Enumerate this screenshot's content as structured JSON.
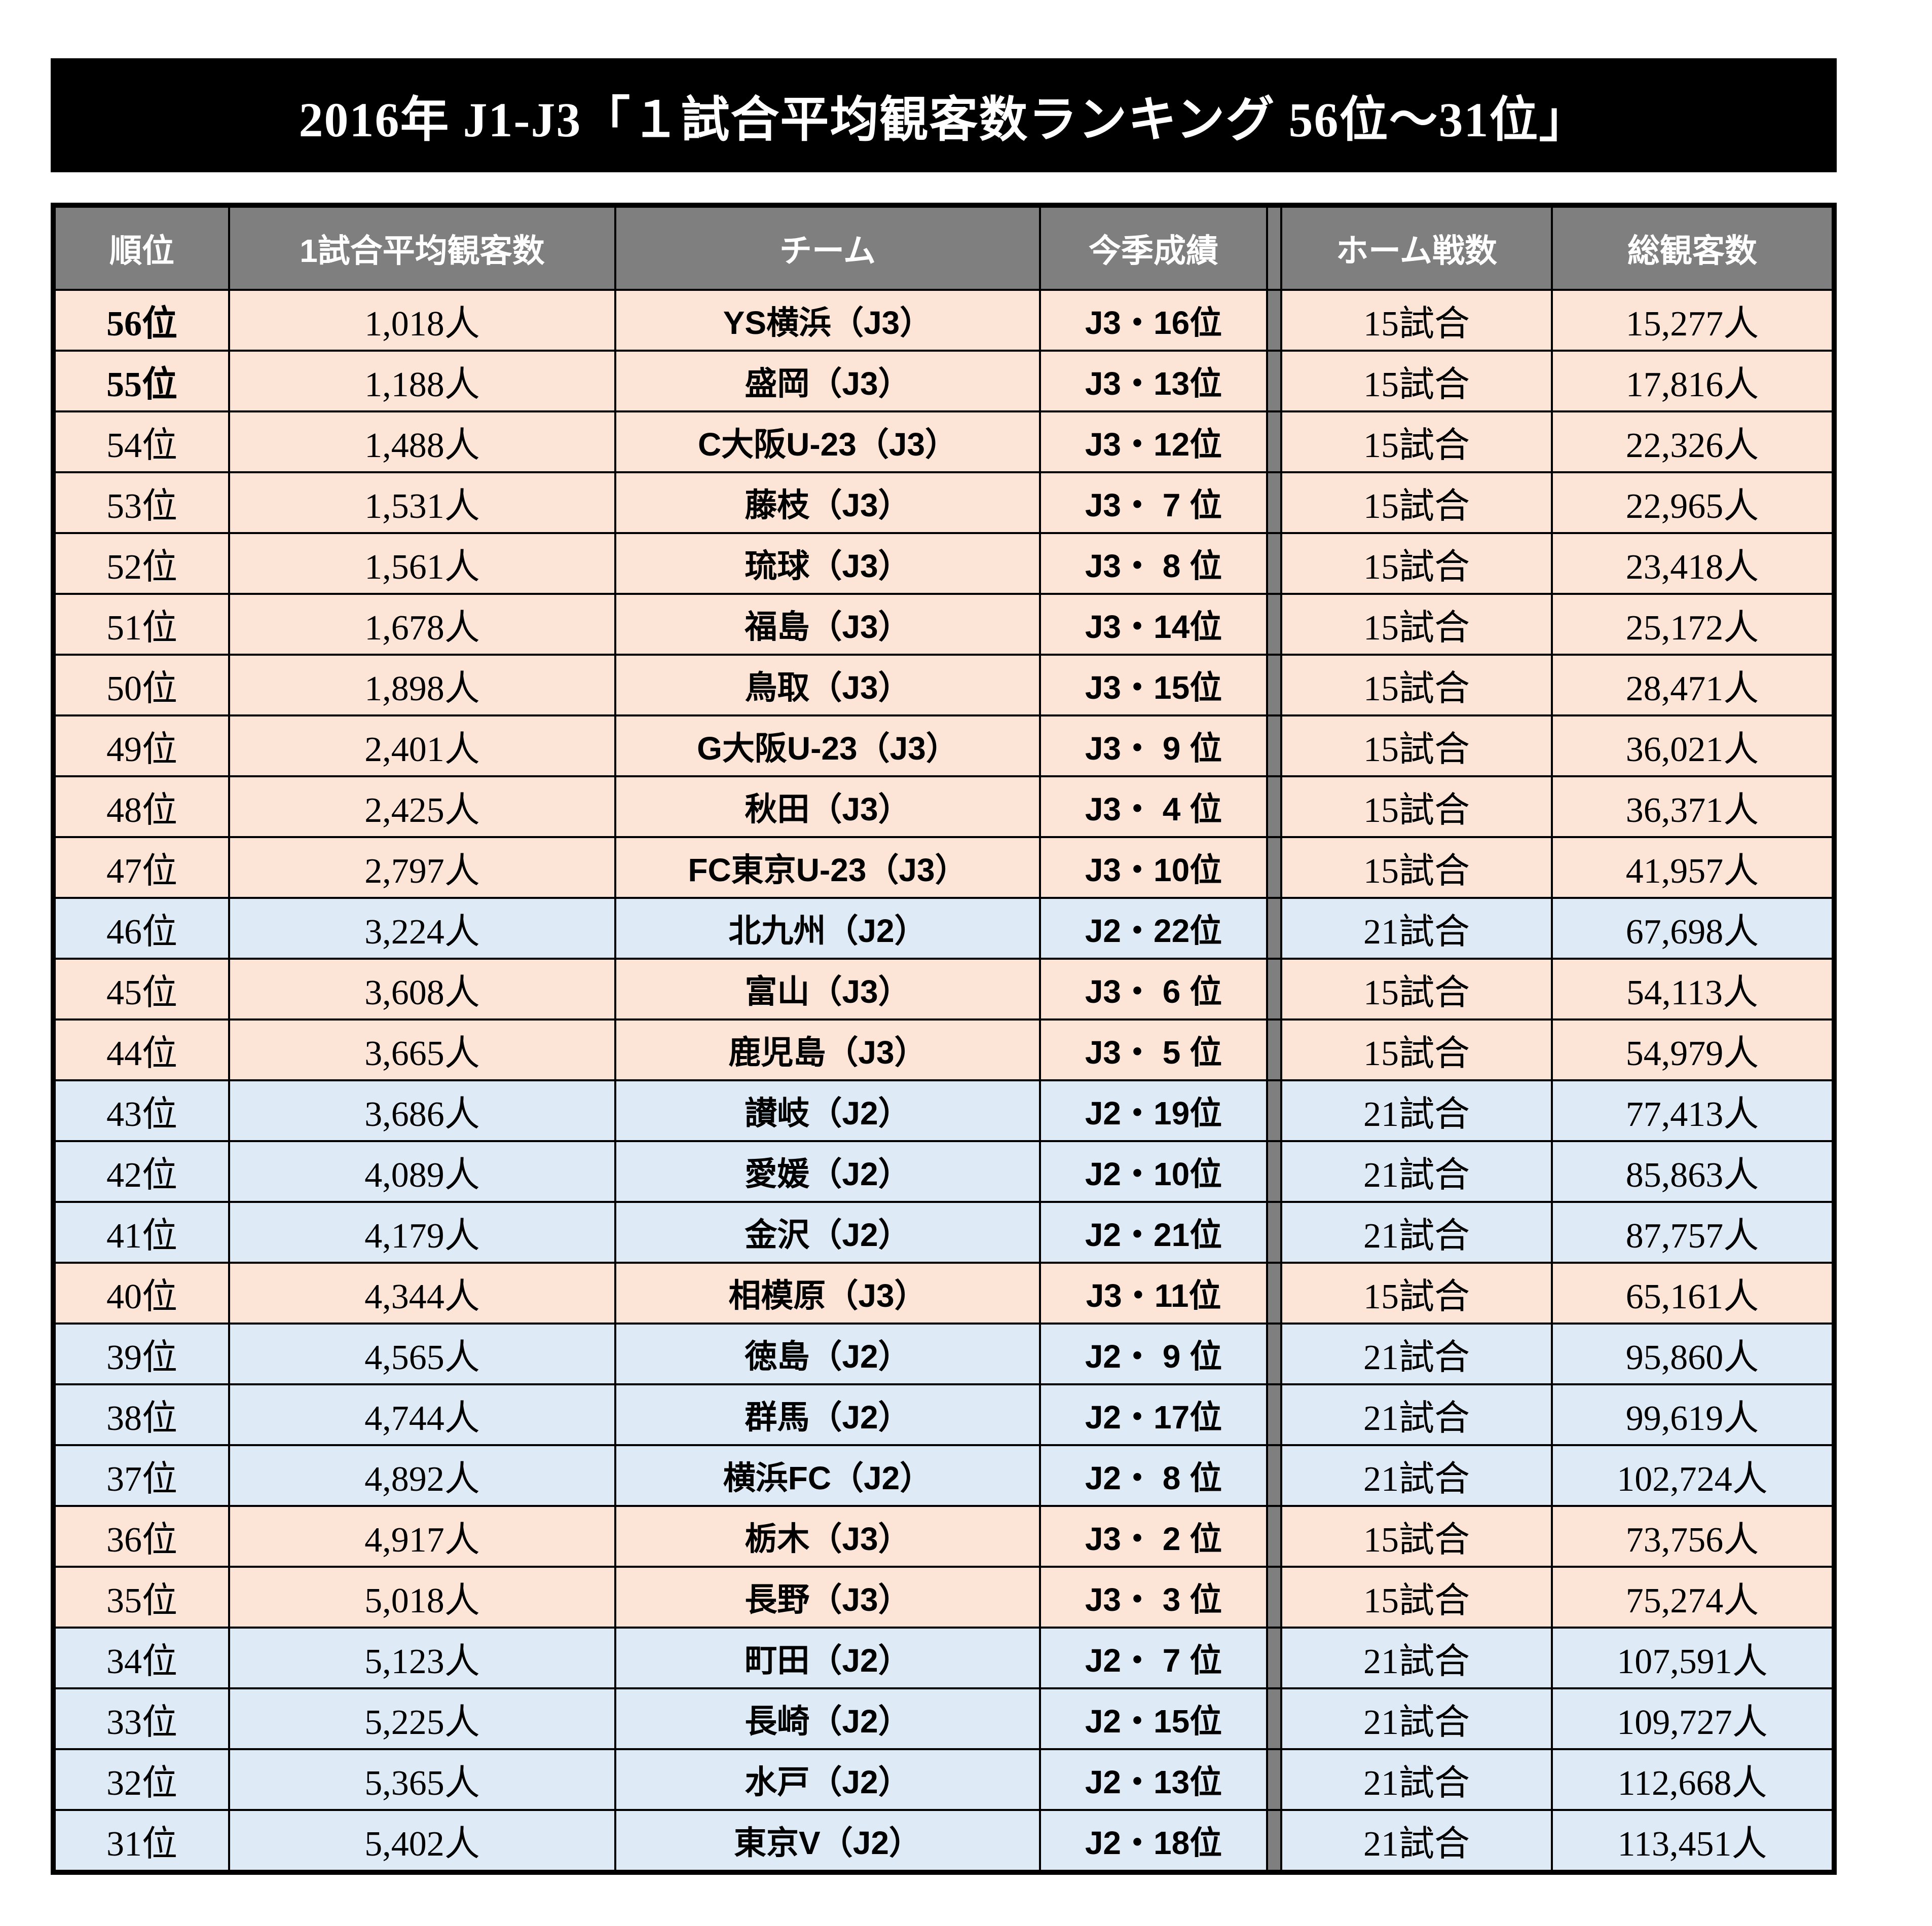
{
  "title": "2016年 J1-J3「１試合平均観客数ランキング 56位～31位」",
  "colors": {
    "title_bg": "#000000",
    "title_text": "#ffffff",
    "header_bg": "#7f7f7f",
    "header_text": "#ffffff",
    "j3_row_bg": "#fce4d6",
    "j2_row_bg": "#deeaf6",
    "border": "#000000",
    "divider": "#7f7f7f"
  },
  "chart_data": {
    "type": "table",
    "title": "2016年 J1-J3「１試合平均観客数ランキング 56位～31位」",
    "columns": [
      "順位",
      "1試合平均観客数",
      "チーム",
      "今季成績",
      "ホーム戦数",
      "総観客数"
    ],
    "row_color_rule": "J3 rows peach #fce4d6, J2 rows light blue #deeaf6",
    "rows": [
      {
        "rank": "56位",
        "avg": "1,018人",
        "team": "YS横浜（J3）",
        "result": "J3・16位",
        "home": "15試合",
        "total": "15,277人",
        "league": "J3",
        "rank_bold": true
      },
      {
        "rank": "55位",
        "avg": "1,188人",
        "team": "盛岡（J3）",
        "result": "J3・13位",
        "home": "15試合",
        "total": "17,816人",
        "league": "J3",
        "rank_bold": true
      },
      {
        "rank": "54位",
        "avg": "1,488人",
        "team": "C大阪U-23（J3）",
        "result": "J3・12位",
        "home": "15試合",
        "total": "22,326人",
        "league": "J3",
        "rank_bold": false
      },
      {
        "rank": "53位",
        "avg": "1,531人",
        "team": "藤枝（J3）",
        "result": "J3・ 7 位",
        "home": "15試合",
        "total": "22,965人",
        "league": "J3",
        "rank_bold": false
      },
      {
        "rank": "52位",
        "avg": "1,561人",
        "team": "琉球（J3）",
        "result": "J3・ 8 位",
        "home": "15試合",
        "total": "23,418人",
        "league": "J3",
        "rank_bold": false
      },
      {
        "rank": "51位",
        "avg": "1,678人",
        "team": "福島（J3）",
        "result": "J3・14位",
        "home": "15試合",
        "total": "25,172人",
        "league": "J3",
        "rank_bold": false
      },
      {
        "rank": "50位",
        "avg": "1,898人",
        "team": "鳥取（J3）",
        "result": "J3・15位",
        "home": "15試合",
        "total": "28,471人",
        "league": "J3",
        "rank_bold": false
      },
      {
        "rank": "49位",
        "avg": "2,401人",
        "team": "G大阪U-23（J3）",
        "result": "J3・ 9 位",
        "home": "15試合",
        "total": "36,021人",
        "league": "J3",
        "rank_bold": false
      },
      {
        "rank": "48位",
        "avg": "2,425人",
        "team": "秋田（J3）",
        "result": "J3・ 4 位",
        "home": "15試合",
        "total": "36,371人",
        "league": "J3",
        "rank_bold": false
      },
      {
        "rank": "47位",
        "avg": "2,797人",
        "team": "FC東京U-23（J3）",
        "result": "J3・10位",
        "home": "15試合",
        "total": "41,957人",
        "league": "J3",
        "rank_bold": false
      },
      {
        "rank": "46位",
        "avg": "3,224人",
        "team": "北九州（J2）",
        "result": "J2・22位",
        "home": "21試合",
        "total": "67,698人",
        "league": "J2",
        "rank_bold": false
      },
      {
        "rank": "45位",
        "avg": "3,608人",
        "team": "富山（J3）",
        "result": "J3・ 6 位",
        "home": "15試合",
        "total": "54,113人",
        "league": "J3",
        "rank_bold": false
      },
      {
        "rank": "44位",
        "avg": "3,665人",
        "team": "鹿児島（J3）",
        "result": "J3・ 5 位",
        "home": "15試合",
        "total": "54,979人",
        "league": "J3",
        "rank_bold": false
      },
      {
        "rank": "43位",
        "avg": "3,686人",
        "team": "讃岐（J2）",
        "result": "J2・19位",
        "home": "21試合",
        "total": "77,413人",
        "league": "J2",
        "rank_bold": false
      },
      {
        "rank": "42位",
        "avg": "4,089人",
        "team": "愛媛（J2）",
        "result": "J2・10位",
        "home": "21試合",
        "total": "85,863人",
        "league": "J2",
        "rank_bold": false
      },
      {
        "rank": "41位",
        "avg": "4,179人",
        "team": "金沢（J2）",
        "result": "J2・21位",
        "home": "21試合",
        "total": "87,757人",
        "league": "J2",
        "rank_bold": false
      },
      {
        "rank": "40位",
        "avg": "4,344人",
        "team": "相模原（J3）",
        "result": "J3・11位",
        "home": "15試合",
        "total": "65,161人",
        "league": "J3",
        "rank_bold": false
      },
      {
        "rank": "39位",
        "avg": "4,565人",
        "team": "徳島（J2）",
        "result": "J2・ 9 位",
        "home": "21試合",
        "total": "95,860人",
        "league": "J2",
        "rank_bold": false
      },
      {
        "rank": "38位",
        "avg": "4,744人",
        "team": "群馬（J2）",
        "result": "J2・17位",
        "home": "21試合",
        "total": "99,619人",
        "league": "J2",
        "rank_bold": false
      },
      {
        "rank": "37位",
        "avg": "4,892人",
        "team": "横浜FC（J2）",
        "result": "J2・ 8 位",
        "home": "21試合",
        "total": "102,724人",
        "league": "J2",
        "rank_bold": false
      },
      {
        "rank": "36位",
        "avg": "4,917人",
        "team": "栃木（J3）",
        "result": "J3・ 2 位",
        "home": "15試合",
        "total": "73,756人",
        "league": "J3",
        "rank_bold": false
      },
      {
        "rank": "35位",
        "avg": "5,018人",
        "team": "長野（J3）",
        "result": "J3・ 3 位",
        "home": "15試合",
        "total": "75,274人",
        "league": "J3",
        "rank_bold": false
      },
      {
        "rank": "34位",
        "avg": "5,123人",
        "team": "町田（J2）",
        "result": "J2・ 7 位",
        "home": "21試合",
        "total": "107,591人",
        "league": "J2",
        "rank_bold": false
      },
      {
        "rank": "33位",
        "avg": "5,225人",
        "team": "長崎（J2）",
        "result": "J2・15位",
        "home": "21試合",
        "total": "109,727人",
        "league": "J2",
        "rank_bold": false
      },
      {
        "rank": "32位",
        "avg": "5,365人",
        "team": "水戸（J2）",
        "result": "J2・13位",
        "home": "21試合",
        "total": "112,668人",
        "league": "J2",
        "rank_bold": false
      },
      {
        "rank": "31位",
        "avg": "5,402人",
        "team": "東京V（J2）",
        "result": "J2・18位",
        "home": "21試合",
        "total": "113,451人",
        "league": "J2",
        "rank_bold": false
      }
    ]
  }
}
